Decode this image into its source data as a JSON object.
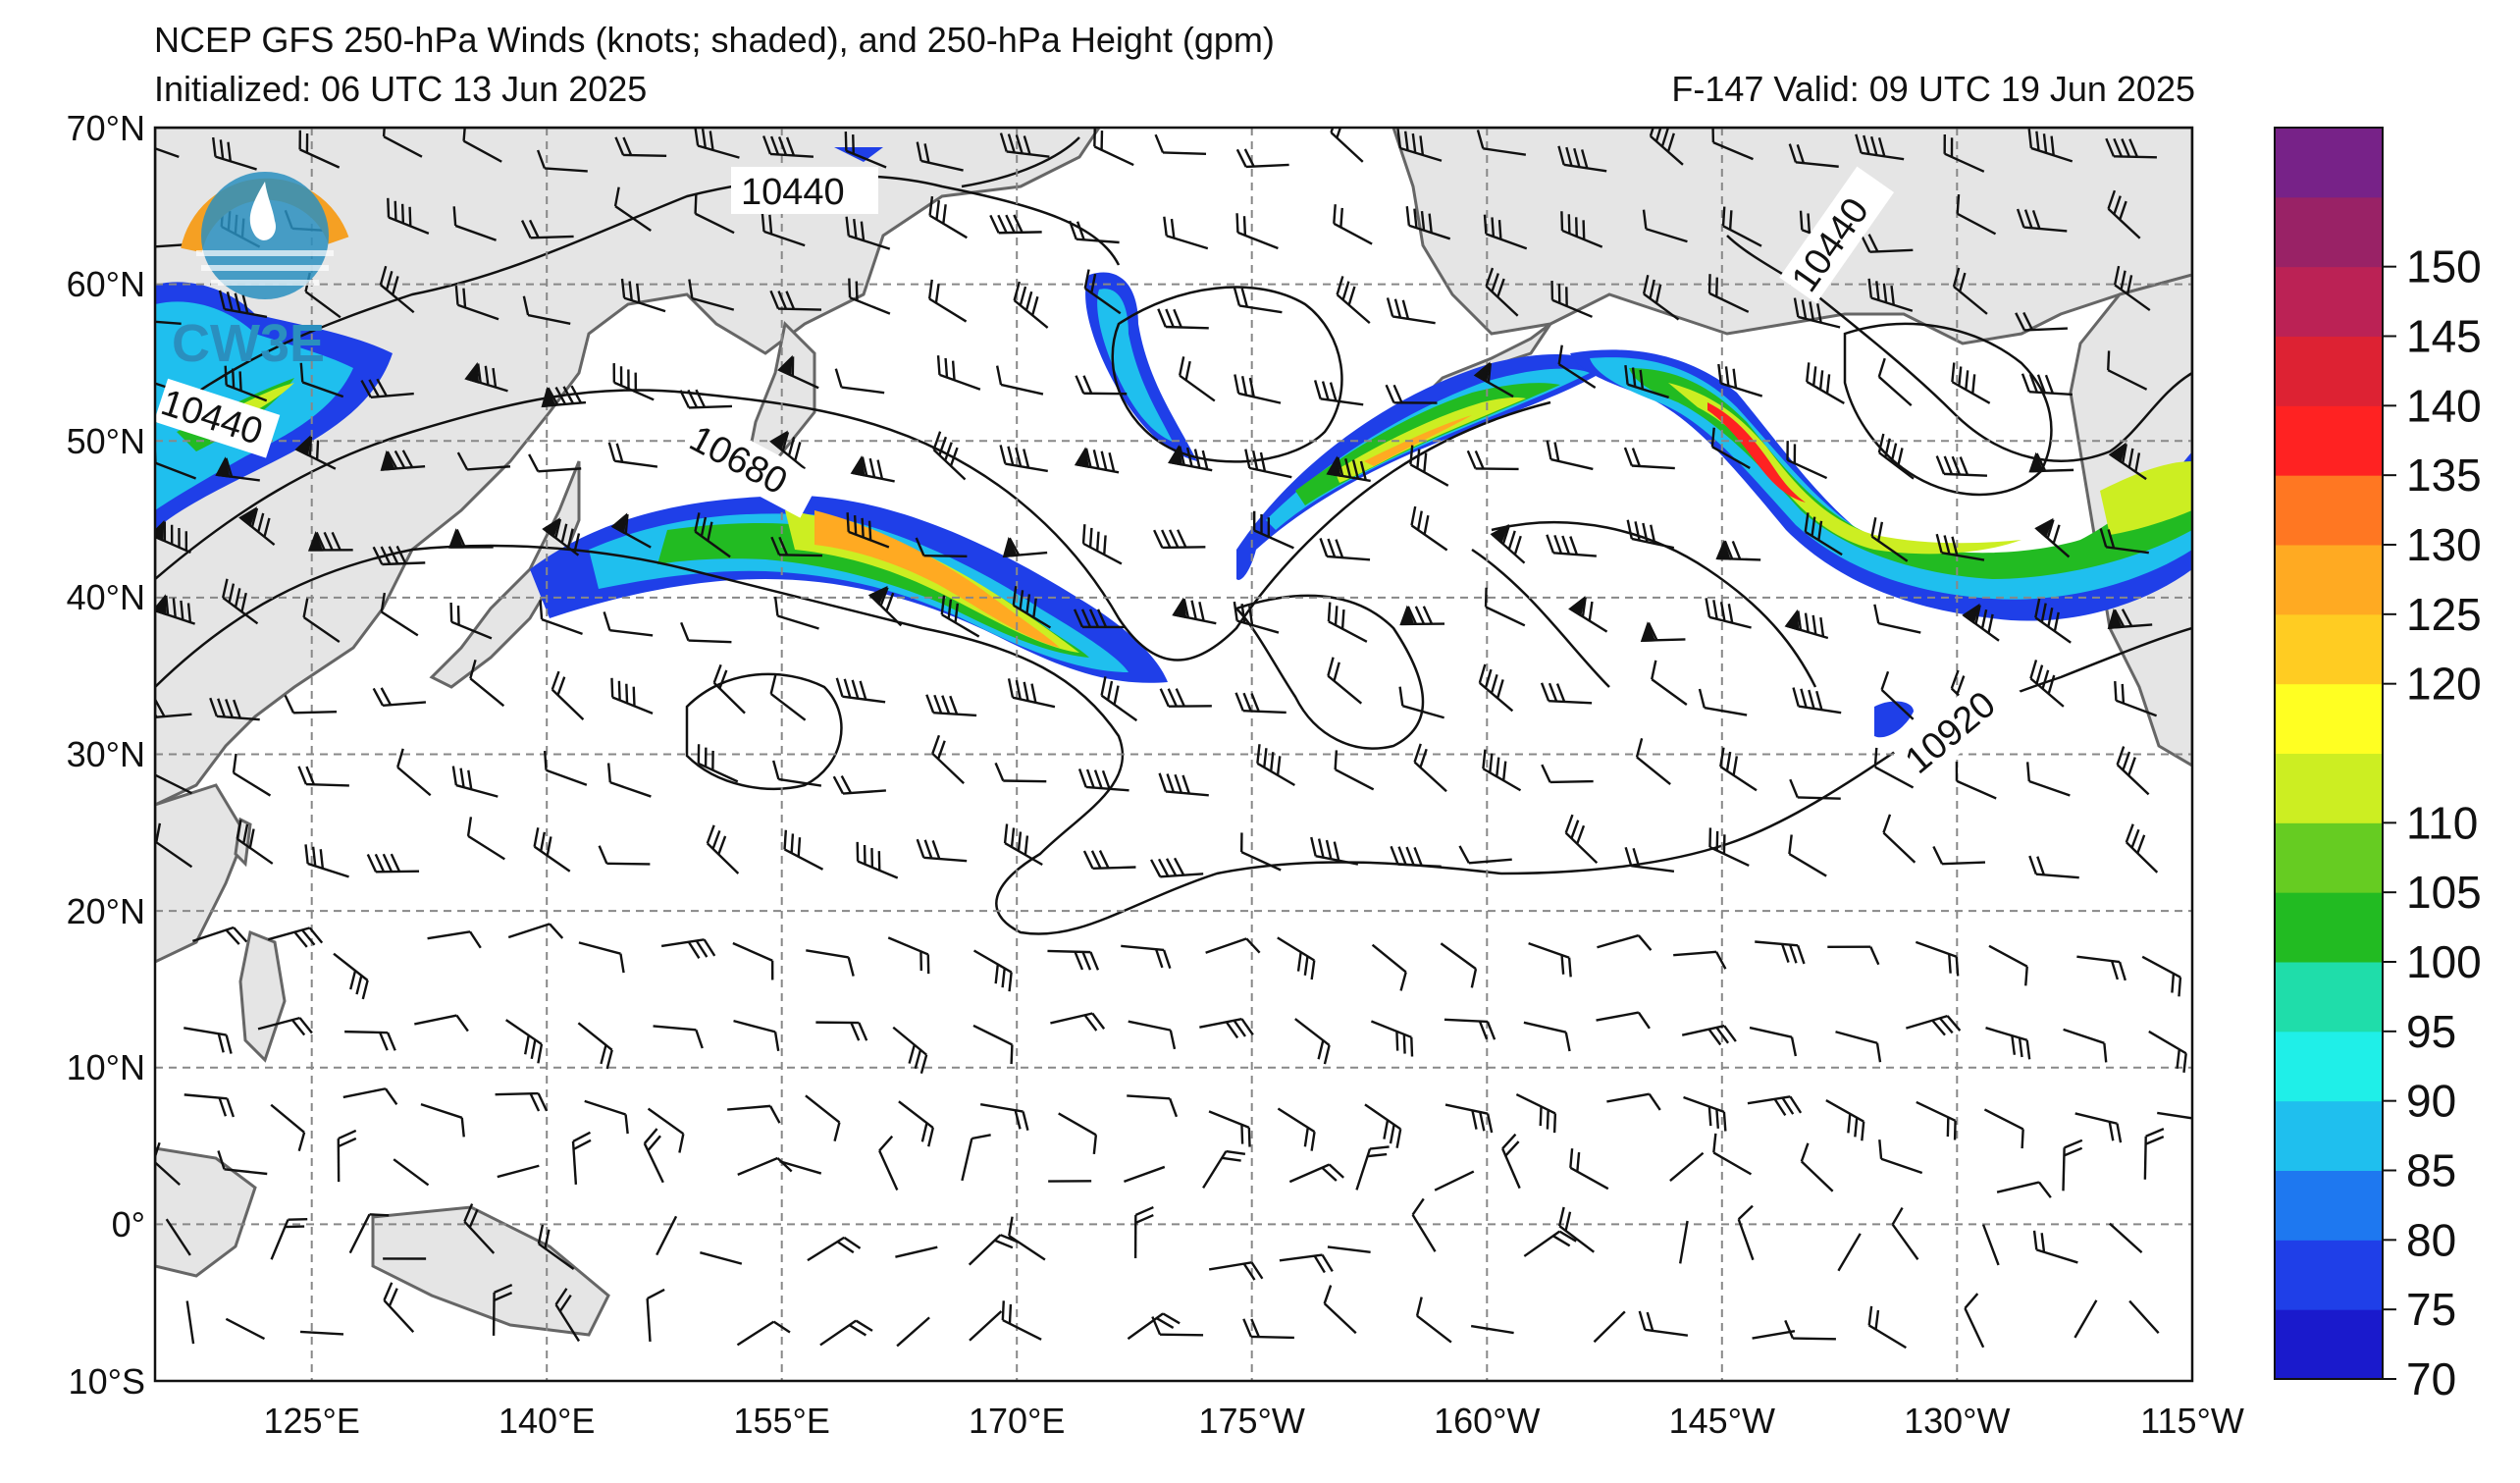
{
  "header": {
    "title": "NCEP GFS 250-hPa Winds (knots; shaded), and 250-hPa Height (gpm)",
    "initialized": "Initialized: 06 UTC 13 Jun 2025",
    "valid": "F-147  Valid: 09 UTC 19 Jun 2025"
  },
  "logo": {
    "text": "CW3E"
  },
  "axes": {
    "lat_labels": [
      "70°N",
      "60°N",
      "50°N",
      "40°N",
      "30°N",
      "20°N",
      "10°N",
      "0°",
      "10°S"
    ],
    "lon_labels": [
      "125°E",
      "140°E",
      "155°E",
      "170°E",
      "175°W",
      "160°W",
      "145°W",
      "130°W",
      "115°W"
    ]
  },
  "contours": {
    "labels": [
      "10440",
      "10440",
      "10680",
      "10440",
      "10920"
    ]
  },
  "colorbar": {
    "ticks": [
      "70",
      "75",
      "80",
      "85",
      "90",
      "95",
      "100",
      "105",
      "110",
      "120",
      "125",
      "130",
      "135",
      "140",
      "145",
      "150"
    ],
    "colors": [
      "#1a1acc",
      "#1f3fe8",
      "#1e78f0",
      "#1fbfee",
      "#1fefe8",
      "#1fddaa",
      "#22bb22",
      "#66cc22",
      "#ccee22",
      "#ffff22",
      "#ffcc22",
      "#ffaa22",
      "#ff7722",
      "#ff2222",
      "#dd2233",
      "#bb2255",
      "#992266",
      "#772288"
    ]
  },
  "colors": {
    "land": "#e5e5e5",
    "coast": "#666666",
    "grid": "#888888"
  }
}
